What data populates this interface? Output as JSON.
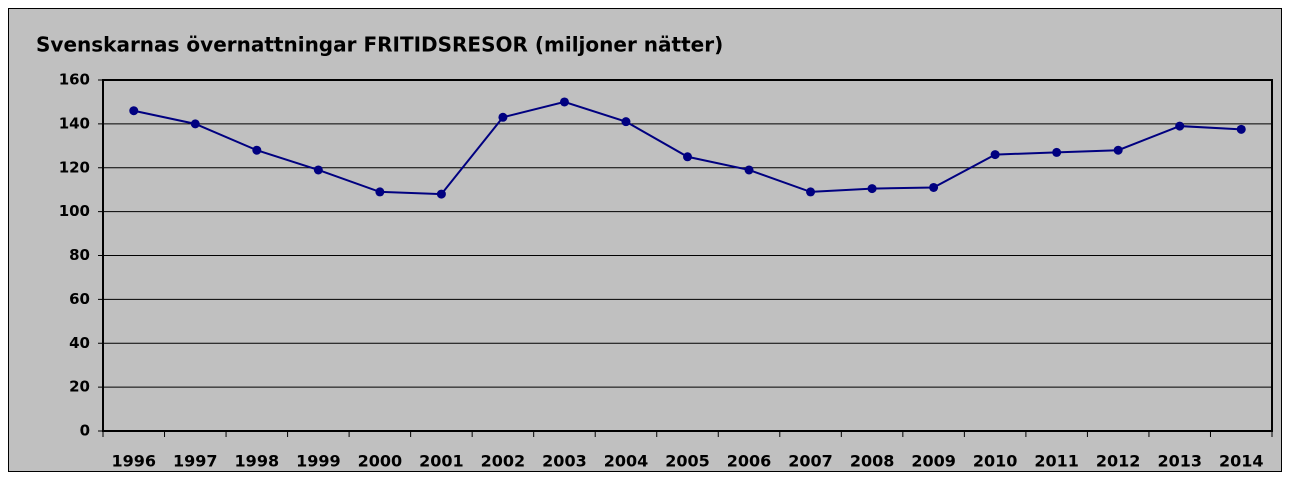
{
  "chart_data": {
    "type": "line",
    "title": "Svenskarnas övernattningar  FRITIDSRESOR (miljoner nätter)",
    "categories": [
      "1996",
      "1997",
      "1998",
      "1999",
      "2000",
      "2001",
      "2002",
      "2003",
      "2004",
      "2005",
      "2006",
      "2007",
      "2008",
      "2009",
      "2010",
      "2011",
      "2012",
      "2013",
      "2014"
    ],
    "series": [
      {
        "name": "Övernattningar",
        "color": "#000080",
        "values": [
          146,
          140,
          128,
          119,
          109,
          108,
          143,
          150,
          141,
          125,
          119,
          109,
          110.5,
          111,
          126,
          127,
          128,
          139,
          137.5
        ]
      }
    ],
    "ylim": [
      0,
      160
    ],
    "yticks": [
      0,
      20,
      40,
      60,
      80,
      100,
      120,
      140,
      160
    ],
    "grid": true
  }
}
